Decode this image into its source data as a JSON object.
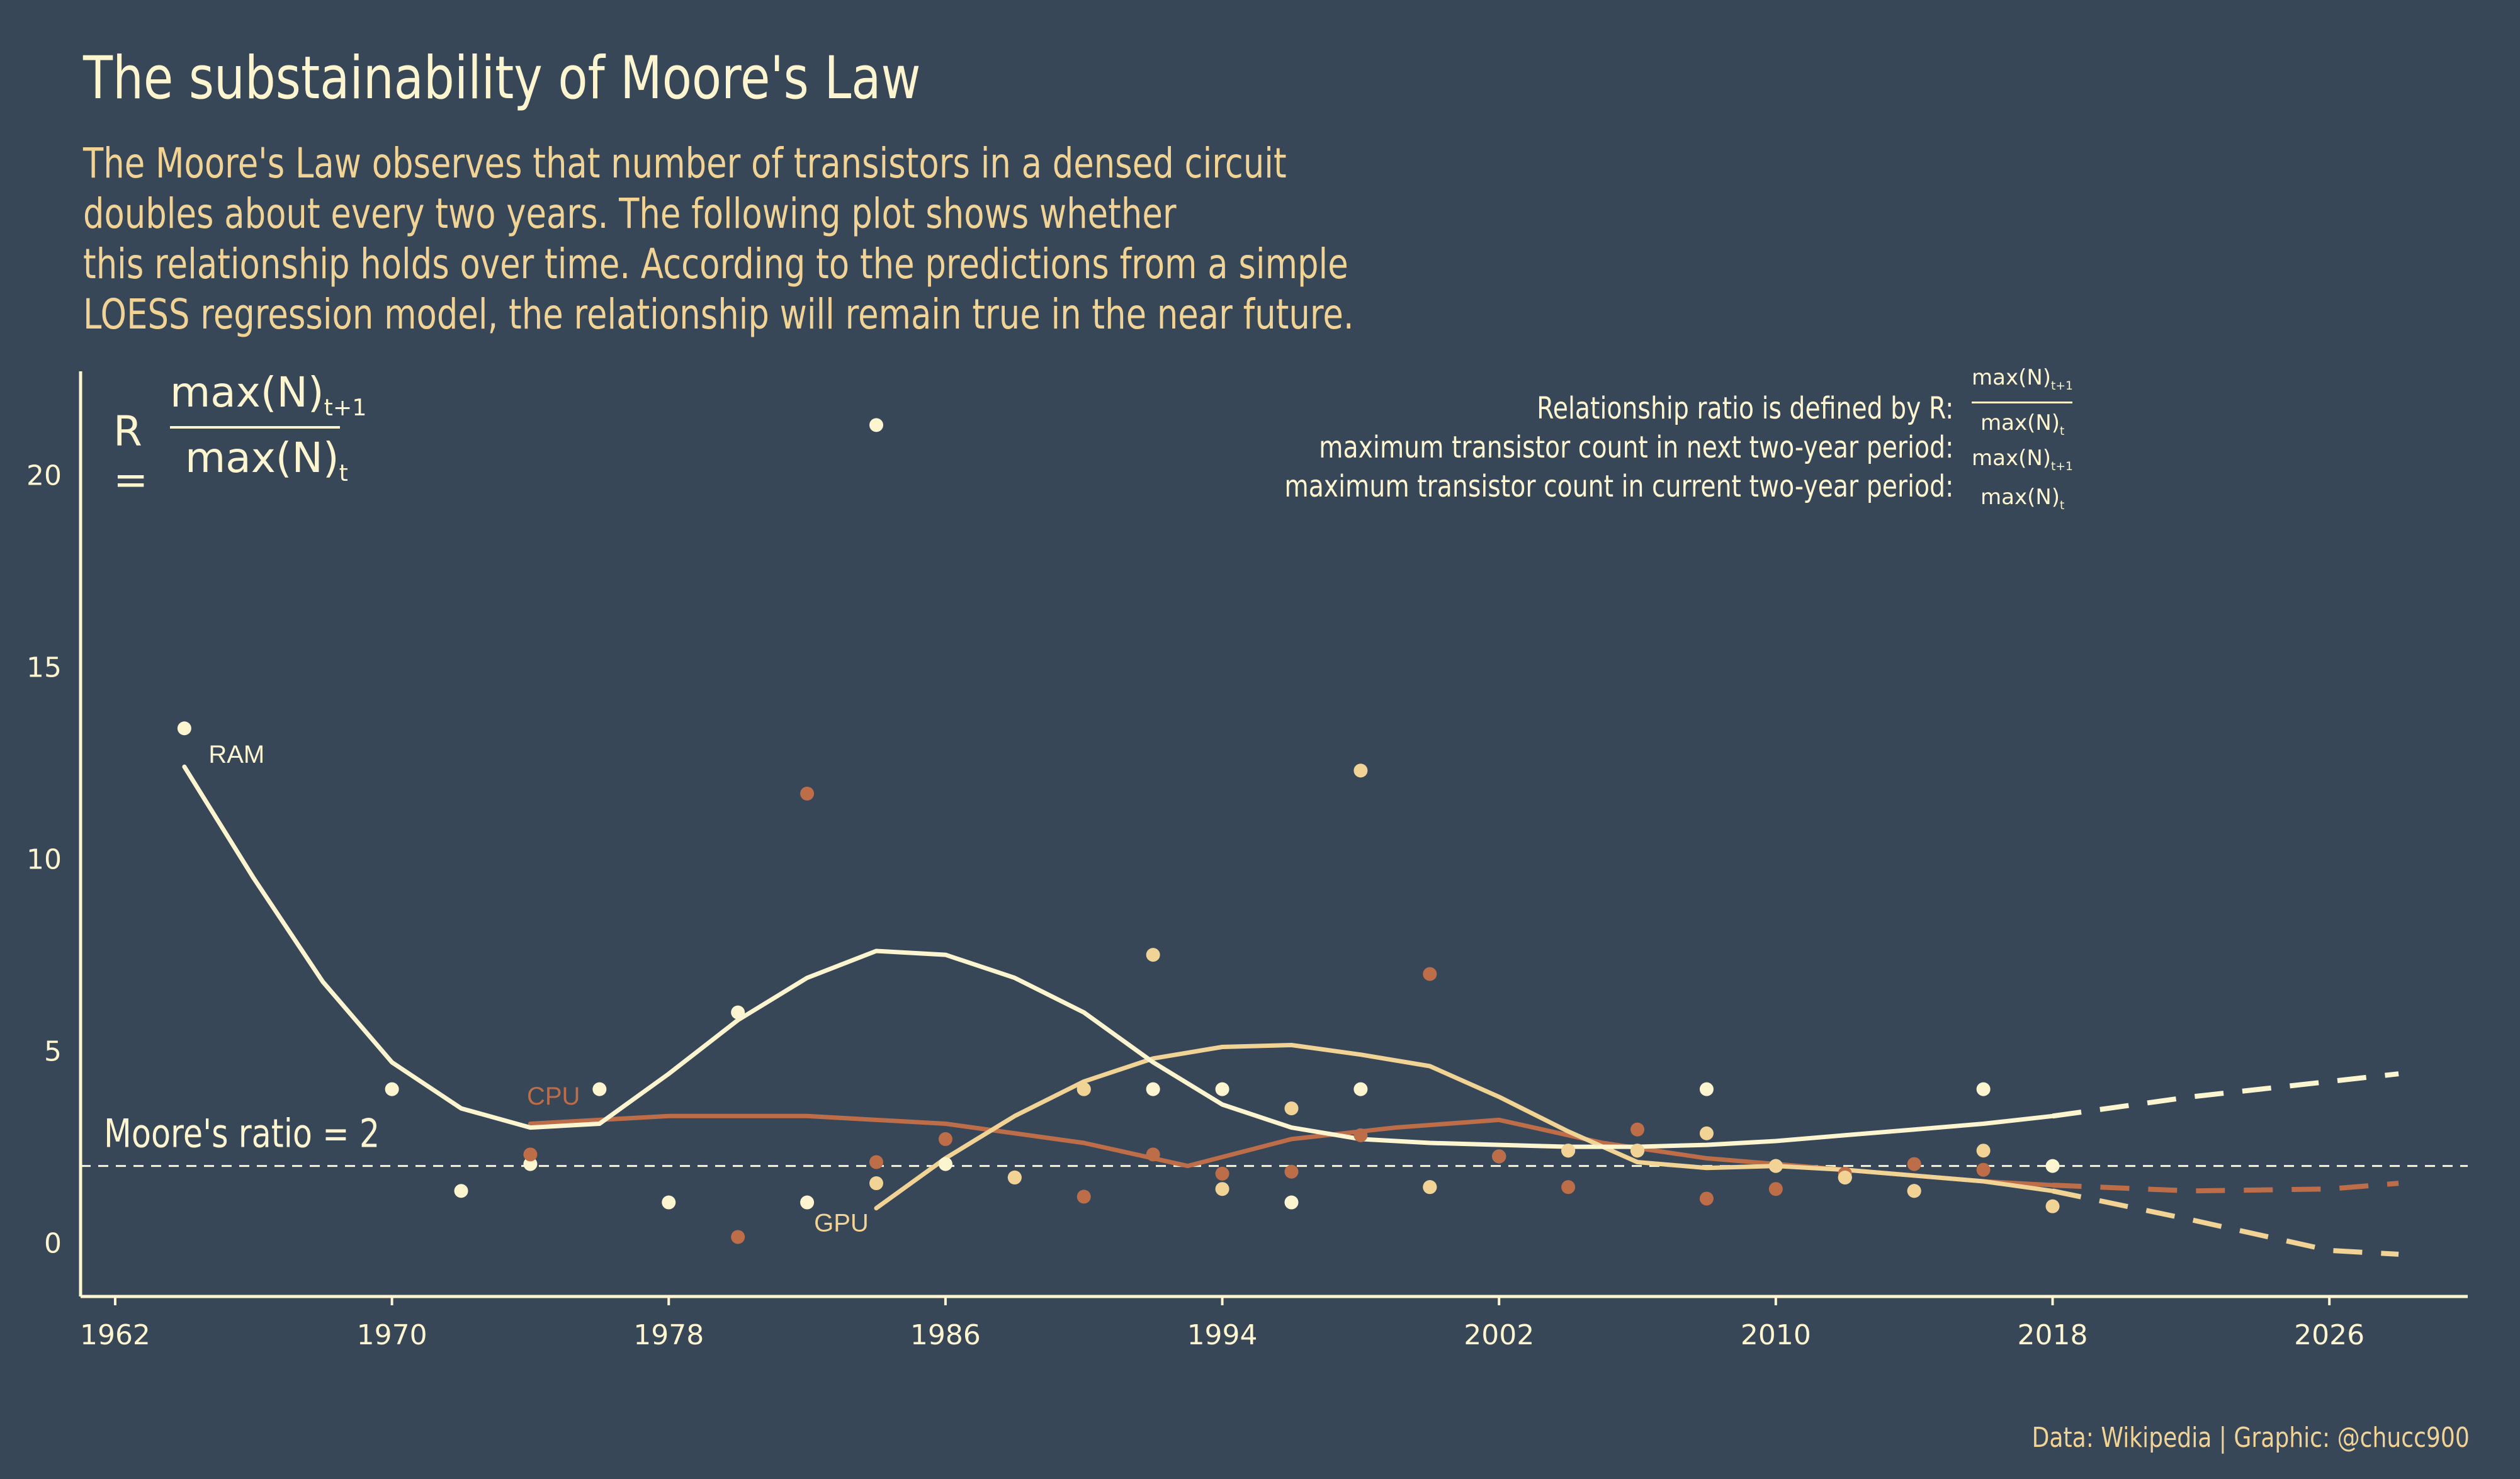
{
  "header": {
    "title": "The substainability of Moore's Law",
    "subtitle_lines": [
      "The Moore's Law observes that number of transistors in a densed circuit",
      "doubles about every two years. The following plot shows whether",
      "this relationship holds over time. According to the predictions from a simple",
      "LOESS regression model, the relationship will remain true in the near future."
    ]
  },
  "formula": {
    "lhs": "R =",
    "numerator": "max(N)",
    "num_sub": "t+1",
    "denominator": "max(N)",
    "den_sub": "t"
  },
  "definitions": {
    "lines": [
      "Relationship ratio is defined by R:",
      "maximum transistor count in next two-year period:",
      "maximum transistor count in current two-year period:"
    ],
    "math_num": "max(N)",
    "math_num_sub": "t+1",
    "math_den": "max(N)",
    "math_den_sub": "t"
  },
  "caption": "Data: Wikipedia | Graphic: @chucc900",
  "colors": {
    "background": "#374758",
    "RAM": "#FDF5D0",
    "CPU": "#BE6D49",
    "GPU": "#F0D395",
    "axis": "#FDF5D0"
  },
  "chart_data": {
    "type": "scatter",
    "xlim": [
      1961,
      2030
    ],
    "ylim": [
      -1.4,
      22.7
    ],
    "x_ticks": [
      1962,
      1970,
      1978,
      1986,
      1994,
      2002,
      2010,
      2018,
      2026
    ],
    "y_ticks": [
      0,
      5,
      10,
      15,
      20
    ],
    "reference_line": {
      "y": 2,
      "label": "Moore's ratio = 2"
    },
    "series": [
      {
        "name": "RAM",
        "points": [
          [
            1964,
            13.4
          ],
          [
            1970,
            4.0
          ],
          [
            1972,
            1.35
          ],
          [
            1974,
            2.05
          ],
          [
            1976,
            4.0
          ],
          [
            1978,
            1.05
          ],
          [
            1980,
            6.0
          ],
          [
            1982,
            1.05
          ],
          [
            1984,
            21.3
          ],
          [
            1986,
            2.05
          ],
          [
            1988,
            1.7
          ],
          [
            1990,
            4.0
          ],
          [
            1992,
            4.0
          ],
          [
            1994,
            4.0
          ],
          [
            1996,
            1.05
          ],
          [
            1998,
            4.0
          ],
          [
            2000,
            1.45
          ],
          [
            2002,
            2.25
          ],
          [
            2004,
            2.4
          ],
          [
            2006,
            2.4
          ],
          [
            2008,
            4.0
          ],
          [
            2010,
            2.0
          ],
          [
            2012,
            1.7
          ],
          [
            2014,
            1.35
          ],
          [
            2016,
            4.0
          ],
          [
            2018,
            2.0
          ]
        ],
        "trend": [
          [
            1964,
            12.4
          ],
          [
            1966,
            9.5
          ],
          [
            1968,
            6.8
          ],
          [
            1970,
            4.7
          ],
          [
            1972,
            3.5
          ],
          [
            1974,
            3.0
          ],
          [
            1976,
            3.1
          ],
          [
            1978,
            4.4
          ],
          [
            1980,
            5.8
          ],
          [
            1982,
            6.9
          ],
          [
            1984,
            7.6
          ],
          [
            1986,
            7.5
          ],
          [
            1988,
            6.9
          ],
          [
            1990,
            6.0
          ],
          [
            1992,
            4.7
          ],
          [
            1994,
            3.6
          ],
          [
            1996,
            3.0
          ],
          [
            1998,
            2.7
          ],
          [
            2000,
            2.6
          ],
          [
            2002,
            2.55
          ],
          [
            2004,
            2.5
          ],
          [
            2006,
            2.5
          ],
          [
            2008,
            2.55
          ],
          [
            2010,
            2.65
          ],
          [
            2012,
            2.8
          ],
          [
            2014,
            2.95
          ],
          [
            2016,
            3.1
          ],
          [
            2018,
            3.3
          ]
        ],
        "forecast": [
          [
            2018,
            3.3
          ],
          [
            2020,
            3.55
          ],
          [
            2022,
            3.8
          ],
          [
            2024,
            4.0
          ],
          [
            2026,
            4.2
          ],
          [
            2028,
            4.4
          ]
        ]
      },
      {
        "name": "CPU",
        "points": [
          [
            1974,
            2.3
          ],
          [
            1980,
            0.15
          ],
          [
            1982,
            11.7
          ],
          [
            1984,
            2.1
          ],
          [
            1986,
            2.7
          ],
          [
            1988,
            1.7
          ],
          [
            1990,
            1.2
          ],
          [
            1992,
            2.3
          ],
          [
            1994,
            1.8
          ],
          [
            1996,
            1.85
          ],
          [
            1998,
            2.8
          ],
          [
            2000,
            7.0
          ],
          [
            2002,
            2.25
          ],
          [
            2004,
            1.45
          ],
          [
            2006,
            2.95
          ],
          [
            2008,
            1.15
          ],
          [
            2010,
            1.4
          ],
          [
            2012,
            1.8
          ],
          [
            2014,
            2.05
          ],
          [
            2016,
            1.9
          ]
        ],
        "trend": [
          [
            1974,
            3.1
          ],
          [
            1978,
            3.3
          ],
          [
            1982,
            3.3
          ],
          [
            1986,
            3.1
          ],
          [
            1990,
            2.6
          ],
          [
            1993,
            2.0
          ],
          [
            1996,
            2.7
          ],
          [
            1999,
            3.0
          ],
          [
            2002,
            3.2
          ],
          [
            2005,
            2.6
          ],
          [
            2008,
            2.2
          ],
          [
            2012,
            1.9
          ],
          [
            2016,
            1.6
          ],
          [
            2018,
            1.5
          ]
        ],
        "forecast": [
          [
            2018,
            1.5
          ],
          [
            2022,
            1.35
          ],
          [
            2026,
            1.4
          ],
          [
            2028,
            1.55
          ]
        ]
      },
      {
        "name": "GPU",
        "points": [
          [
            1984,
            1.55
          ],
          [
            1988,
            1.7
          ],
          [
            1990,
            4.0
          ],
          [
            1992,
            7.5
          ],
          [
            1994,
            1.4
          ],
          [
            1996,
            3.5
          ],
          [
            1998,
            12.3
          ],
          [
            2000,
            1.45
          ],
          [
            2004,
            2.4
          ],
          [
            2006,
            2.4
          ],
          [
            2008,
            2.85
          ],
          [
            2010,
            2.0
          ],
          [
            2012,
            1.7
          ],
          [
            2014,
            1.35
          ],
          [
            2016,
            2.4
          ],
          [
            2018,
            0.95
          ]
        ],
        "trend": [
          [
            1984,
            0.9
          ],
          [
            1986,
            2.2
          ],
          [
            1988,
            3.3
          ],
          [
            1990,
            4.2
          ],
          [
            1992,
            4.8
          ],
          [
            1994,
            5.1
          ],
          [
            1996,
            5.15
          ],
          [
            1998,
            4.9
          ],
          [
            2000,
            4.6
          ],
          [
            2002,
            3.8
          ],
          [
            2004,
            2.9
          ],
          [
            2006,
            2.1
          ],
          [
            2008,
            1.95
          ],
          [
            2010,
            2.0
          ],
          [
            2012,
            1.9
          ],
          [
            2014,
            1.75
          ],
          [
            2016,
            1.6
          ],
          [
            2018,
            1.35
          ]
        ],
        "forecast": [
          [
            2018,
            1.35
          ],
          [
            2022,
            0.6
          ],
          [
            2026,
            -0.2
          ],
          [
            2028,
            -0.3
          ]
        ]
      }
    ]
  }
}
